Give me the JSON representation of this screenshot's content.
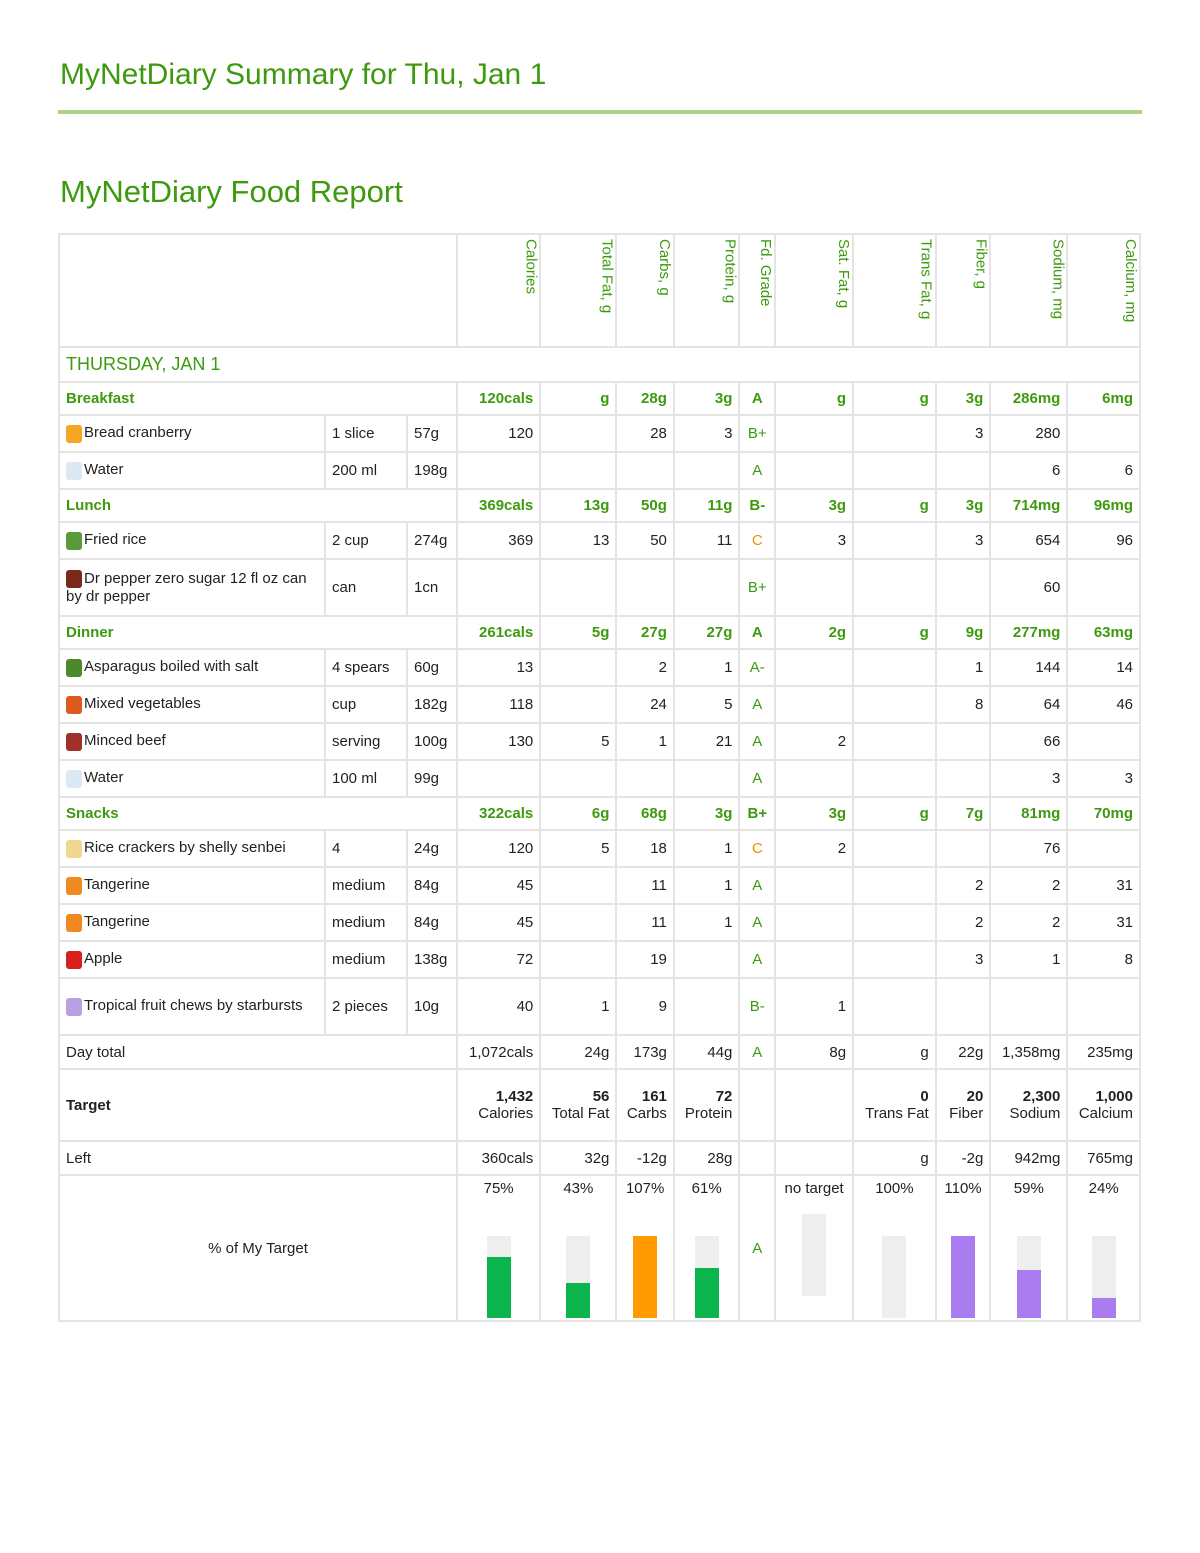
{
  "title": "MyNetDiary Summary for Thu, Jan 1",
  "report_title": "MyNetDiary Food Report",
  "columns": [
    "Calories",
    "Total Fat, g",
    "Carbs, g",
    "Protein, g",
    "Fd. Grade",
    "Sat. Fat, g",
    "Trans Fat, g",
    "Fiber, g",
    "Sodium, mg",
    "Calcium, mg"
  ],
  "day_label": "THURSDAY, JAN 1",
  "meals": [
    {
      "name": "Breakfast",
      "totals": [
        "120cals",
        "g",
        "28g",
        "3g",
        "A",
        "g",
        "g",
        "3g",
        "286mg",
        "6mg"
      ],
      "foods": [
        {
          "icon": "bread-icon",
          "name": "Bread cranberry",
          "amount": "1 slice",
          "weight": "57g",
          "values": [
            "120",
            "",
            "28",
            "3",
            "B+",
            "",
            "",
            "3",
            "280",
            ""
          ]
        },
        {
          "icon": "water-icon",
          "name": "Water",
          "amount": "200 ml",
          "weight": "198g",
          "values": [
            "",
            "",
            "",
            "",
            "A",
            "",
            "",
            "",
            "6",
            "6"
          ]
        }
      ]
    },
    {
      "name": "Lunch",
      "totals": [
        "369cals",
        "13g",
        "50g",
        "11g",
        "B-",
        "3g",
        "g",
        "3g",
        "714mg",
        "96mg"
      ],
      "foods": [
        {
          "icon": "rice-bowl-icon",
          "name": "Fried rice",
          "amount": "2 cup",
          "weight": "274g",
          "values": [
            "369",
            "13",
            "50",
            "11",
            "C",
            "3",
            "",
            "3",
            "654",
            "96"
          ]
        },
        {
          "icon": "soda-icon",
          "name": "Dr pepper zero sugar 12 fl oz can by dr pepper",
          "amount": "can",
          "weight": "1cn",
          "values": [
            "",
            "",
            "",
            "",
            "B+",
            "",
            "",
            "",
            "60",
            ""
          ]
        }
      ]
    },
    {
      "name": "Dinner",
      "totals": [
        "261cals",
        "5g",
        "27g",
        "27g",
        "A",
        "2g",
        "g",
        "9g",
        "277mg",
        "63mg"
      ],
      "foods": [
        {
          "icon": "asparagus-icon",
          "name": "Asparagus boiled with salt",
          "amount": "4 spears",
          "weight": "60g",
          "values": [
            "13",
            "",
            "2",
            "1",
            "A-",
            "",
            "",
            "1",
            "144",
            "14"
          ]
        },
        {
          "icon": "vegetables-icon",
          "name": "Mixed vegetables",
          "amount": "cup",
          "weight": "182g",
          "values": [
            "118",
            "",
            "24",
            "5",
            "A",
            "",
            "",
            "8",
            "64",
            "46"
          ]
        },
        {
          "icon": "beef-icon",
          "name": "Minced beef",
          "amount": "serving",
          "weight": "100g",
          "values": [
            "130",
            "5",
            "1",
            "21",
            "A",
            "2",
            "",
            "",
            "66",
            ""
          ]
        },
        {
          "icon": "water-icon",
          "name": "Water",
          "amount": "100 ml",
          "weight": "99g",
          "values": [
            "",
            "",
            "",
            "",
            "A",
            "",
            "",
            "",
            "3",
            "3"
          ]
        }
      ]
    },
    {
      "name": "Snacks",
      "totals": [
        "322cals",
        "6g",
        "68g",
        "3g",
        "B+",
        "3g",
        "g",
        "7g",
        "81mg",
        "70mg"
      ],
      "foods": [
        {
          "icon": "cracker-icon",
          "name": "Rice crackers by shelly senbei",
          "amount": "4",
          "weight": "24g",
          "values": [
            "120",
            "5",
            "18",
            "1",
            "C",
            "2",
            "",
            "",
            "76",
            ""
          ]
        },
        {
          "icon": "tangerine-icon",
          "name": "Tangerine",
          "amount": "medium",
          "weight": "84g",
          "values": [
            "45",
            "",
            "11",
            "1",
            "A",
            "",
            "",
            "2",
            "2",
            "31"
          ]
        },
        {
          "icon": "tangerine-icon",
          "name": "Tangerine",
          "amount": "medium",
          "weight": "84g",
          "values": [
            "45",
            "",
            "11",
            "1",
            "A",
            "",
            "",
            "2",
            "2",
            "31"
          ]
        },
        {
          "icon": "apple-icon",
          "name": "Apple",
          "amount": "medium",
          "weight": "138g",
          "values": [
            "72",
            "",
            "19",
            "",
            "A",
            "",
            "",
            "3",
            "1",
            "8"
          ]
        },
        {
          "icon": "candy-icon",
          "name": "Tropical fruit chews by starbursts",
          "amount": "2 pieces",
          "weight": "10g",
          "values": [
            "40",
            "1",
            "9",
            "",
            "B-",
            "1",
            "",
            "",
            "",
            ""
          ]
        }
      ]
    }
  ],
  "day_total": {
    "label": "Day total",
    "values": [
      "1,072cals",
      "24g",
      "173g",
      "44g",
      "A",
      "8g",
      "g",
      "22g",
      "1,358mg",
      "235mg"
    ]
  },
  "target": {
    "label": "Target",
    "values": [
      {
        "n": "1,432",
        "t": "Calories"
      },
      {
        "n": "56",
        "t": "Total Fat"
      },
      {
        "n": "161",
        "t": "Carbs"
      },
      {
        "n": "72",
        "t": "Protein"
      },
      {
        "n": "",
        "t": ""
      },
      {
        "n": "",
        "t": ""
      },
      {
        "n": "0",
        "t": "Trans Fat"
      },
      {
        "n": "20",
        "t": "Fiber"
      },
      {
        "n": "2,300",
        "t": "Sodium"
      },
      {
        "n": "1,000",
        "t": "Calcium"
      }
    ]
  },
  "left": {
    "label": "Left",
    "values": [
      "360cals",
      "32g",
      "-12g",
      "28g",
      "",
      "",
      "g",
      "-2g",
      "942mg",
      "765mg"
    ]
  },
  "pct": {
    "label": "% of My Target",
    "grade": "A",
    "items": [
      {
        "text": "75%",
        "fill": 75,
        "color": "#0cb44e"
      },
      {
        "text": "43%",
        "fill": 43,
        "color": "#0cb44e"
      },
      {
        "text": "107%",
        "fill": 100,
        "color": "#ff9a00"
      },
      {
        "text": "61%",
        "fill": 61,
        "color": "#0cb44e"
      },
      null,
      {
        "text": "no target",
        "fill": 0,
        "color": "#eeeeee"
      },
      {
        "text": "100%",
        "fill": 0,
        "color": "#eeeeee"
      },
      {
        "text": "110%",
        "fill": 100,
        "color": "#a97cf0"
      },
      {
        "text": "59%",
        "fill": 59,
        "color": "#a97cf0"
      },
      {
        "text": "24%",
        "fill": 24,
        "color": "#a97cf0"
      }
    ]
  },
  "icon_colors": {
    "bread-icon": "#f5a623",
    "water-icon": "#dde8f5",
    "rice-bowl-icon": "#5a9a3a",
    "soda-icon": "#7a2a1a",
    "asparagus-icon": "#4a8a2a",
    "vegetables-icon": "#e05a20",
    "beef-icon": "#a0302a",
    "cracker-icon": "#f0d890",
    "tangerine-icon": "#f08a20",
    "apple-icon": "#d8201a",
    "candy-icon": "#b9a0e0"
  }
}
